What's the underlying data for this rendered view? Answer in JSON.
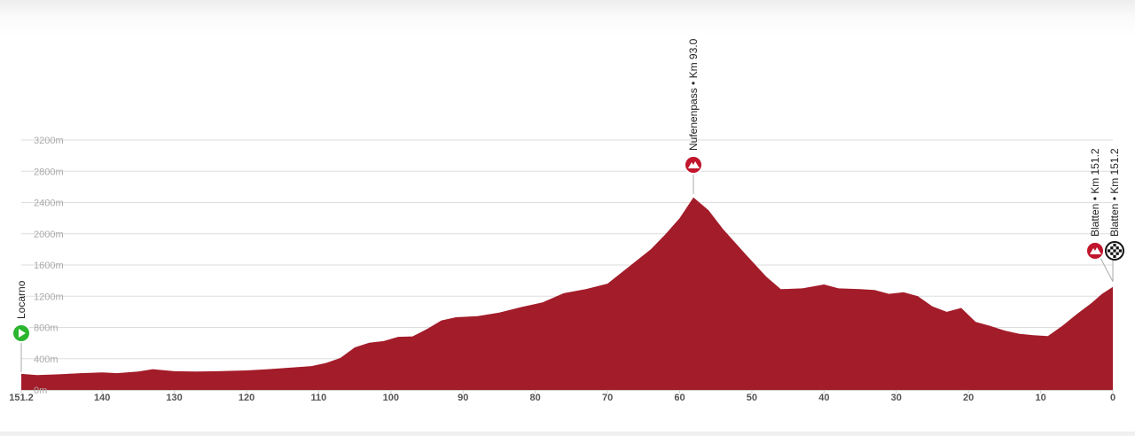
{
  "chart_data": {
    "type": "area",
    "title": "",
    "xlabel": "",
    "ylabel": "",
    "x_axis": "distance remaining (km)",
    "xlim": [
      151.2,
      0
    ],
    "ylim": [
      0,
      3200
    ],
    "grid": true,
    "colors": {
      "area": "#a31c2a",
      "grid": "#dddddd",
      "start": "#2bb52f",
      "climb": "#c0152b",
      "finish": "#111111"
    },
    "y_ticks": [
      {
        "value": 0,
        "label": "0m"
      },
      {
        "value": 400,
        "label": "400m"
      },
      {
        "value": 800,
        "label": "800m"
      },
      {
        "value": 1200,
        "label": "1200m"
      },
      {
        "value": 1600,
        "label": "1600m"
      },
      {
        "value": 2000,
        "label": "2000m"
      },
      {
        "value": 2400,
        "label": "2400m"
      },
      {
        "value": 2800,
        "label": "2800m"
      },
      {
        "value": 3200,
        "label": "3200m"
      }
    ],
    "x_ticks": [
      {
        "value": 151.2,
        "label": "151.2"
      },
      {
        "value": 140,
        "label": "140"
      },
      {
        "value": 130,
        "label": "130"
      },
      {
        "value": 120,
        "label": "120"
      },
      {
        "value": 110,
        "label": "110"
      },
      {
        "value": 100,
        "label": "100"
      },
      {
        "value": 90,
        "label": "90"
      },
      {
        "value": 80,
        "label": "80"
      },
      {
        "value": 70,
        "label": "70"
      },
      {
        "value": 60,
        "label": "60"
      },
      {
        "value": 50,
        "label": "50"
      },
      {
        "value": 40,
        "label": "40"
      },
      {
        "value": 30,
        "label": "30"
      },
      {
        "value": 20,
        "label": "20"
      },
      {
        "value": 10,
        "label": "10"
      },
      {
        "value": 0,
        "label": "0"
      }
    ],
    "profile": [
      [
        151.2,
        205
      ],
      [
        149,
        190
      ],
      [
        146,
        200
      ],
      [
        143,
        215
      ],
      [
        140,
        225
      ],
      [
        138,
        215
      ],
      [
        135,
        235
      ],
      [
        133,
        265
      ],
      [
        130,
        240
      ],
      [
        127,
        235
      ],
      [
        124,
        240
      ],
      [
        120,
        250
      ],
      [
        117,
        265
      ],
      [
        114,
        285
      ],
      [
        111,
        305
      ],
      [
        109,
        345
      ],
      [
        107,
        410
      ],
      [
        105,
        545
      ],
      [
        103,
        605
      ],
      [
        101,
        625
      ],
      [
        99,
        680
      ],
      [
        97,
        685
      ],
      [
        95,
        780
      ],
      [
        93,
        890
      ],
      [
        91,
        930
      ],
      [
        88,
        945
      ],
      [
        85,
        990
      ],
      [
        82,
        1060
      ],
      [
        79,
        1120
      ],
      [
        76,
        1240
      ],
      [
        73,
        1290
      ],
      [
        70,
        1360
      ],
      [
        67,
        1580
      ],
      [
        64,
        1800
      ],
      [
        62,
        1990
      ],
      [
        60,
        2200
      ],
      [
        58.1,
        2465
      ],
      [
        56,
        2300
      ],
      [
        54,
        2060
      ],
      [
        51,
        1750
      ],
      [
        48,
        1450
      ],
      [
        46,
        1290
      ],
      [
        43,
        1300
      ],
      [
        40,
        1350
      ],
      [
        38,
        1300
      ],
      [
        35,
        1290
      ],
      [
        33,
        1280
      ],
      [
        31,
        1230
      ],
      [
        29,
        1250
      ],
      [
        27,
        1200
      ],
      [
        25,
        1070
      ],
      [
        23,
        1000
      ],
      [
        21,
        1050
      ],
      [
        19,
        870
      ],
      [
        17,
        820
      ],
      [
        15,
        760
      ],
      [
        13,
        720
      ],
      [
        11,
        700
      ],
      [
        9,
        690
      ],
      [
        7,
        820
      ],
      [
        5,
        970
      ],
      [
        3,
        1110
      ],
      [
        1.5,
        1230
      ],
      [
        0,
        1320
      ]
    ],
    "points": [
      {
        "km": 151.2,
        "type": "start",
        "icon": "play-icon",
        "label": "Locarno"
      },
      {
        "km": 58.1,
        "type": "climb",
        "icon": "mountain-icon",
        "label": "Nufenenpass • Km 93.0"
      },
      {
        "km": 0,
        "type": "climb",
        "icon": "mountain-icon",
        "label": "Blatten • Km 151.2"
      },
      {
        "km": 0,
        "type": "finish",
        "icon": "checkered-flag-icon",
        "label": "Blatten • Km 151.2"
      }
    ]
  }
}
